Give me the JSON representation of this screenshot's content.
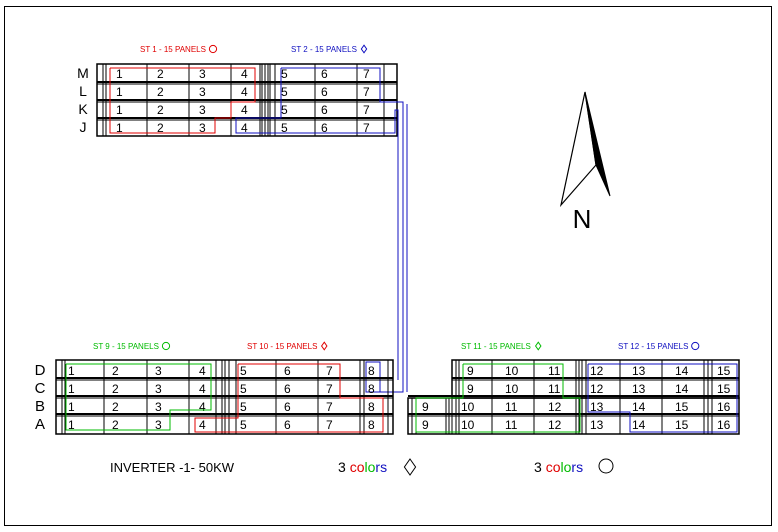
{
  "strings": [
    {
      "label": "ST 1 - 15 PANELS",
      "symbol": "circle",
      "color": "#e00000"
    },
    {
      "label": "ST 2 - 15 PANELS",
      "symbol": "diamond",
      "color": "#1010c0"
    },
    {
      "label": "ST 9 - 15 PANELS",
      "symbol": "circle",
      "color": "#00bb00"
    },
    {
      "label": "ST 10 - 15 PANELS",
      "symbol": "diamond",
      "color": "#e00000"
    },
    {
      "label": "ST 11 - 15 PANELS",
      "symbol": "diamond",
      "color": "#00bb00"
    },
    {
      "label": "ST 12 - 15 PANELS",
      "symbol": "circle",
      "color": "#1010c0"
    }
  ],
  "top_rows": [
    "M",
    "L",
    "K",
    "J"
  ],
  "bottom_rows": [
    "D",
    "C",
    "B",
    "A"
  ],
  "top_block": {
    "M": [
      "1",
      "2",
      "3",
      "4",
      "5",
      "6",
      "7"
    ],
    "L": [
      "1",
      "2",
      "3",
      "4",
      "5",
      "6",
      "7"
    ],
    "K": [
      "1",
      "2",
      "3",
      "4",
      "5",
      "6",
      "7"
    ],
    "J": [
      "1",
      "2",
      "3",
      "4",
      "5",
      "6",
      "7"
    ]
  },
  "bottom_left_block": {
    "D": [
      "1",
      "2",
      "3",
      "4",
      "5",
      "6",
      "7",
      "8"
    ],
    "C": [
      "1",
      "2",
      "3",
      "4",
      "5",
      "6",
      "7",
      "8"
    ],
    "B": [
      "1",
      "2",
      "3",
      "4",
      "5",
      "6",
      "7",
      "8"
    ],
    "A": [
      "1",
      "2",
      "3",
      "4",
      "5",
      "6",
      "7",
      "8"
    ]
  },
  "bottom_right_block": {
    "D": [
      "9",
      "10",
      "11",
      "12",
      "13",
      "14",
      "15"
    ],
    "C": [
      "9",
      "10",
      "11",
      "12",
      "13",
      "14",
      "15"
    ],
    "B": [
      "9",
      "10",
      "11",
      "12",
      "13",
      "14",
      "15",
      "16"
    ],
    "A": [
      "9",
      "10",
      "11",
      "12",
      "13",
      "14",
      "15",
      "16"
    ]
  },
  "north_label": "N",
  "inverter_label": "INVERTER -1-  50KW",
  "legend_diamond": {
    "prefix": "3 ",
    "word": [
      "c",
      "o",
      "l",
      "o",
      "r",
      "s"
    ],
    "symbol": "diamond"
  },
  "legend_circle": {
    "prefix": "3 ",
    "word": [
      "c",
      "o",
      "l",
      "o",
      "r",
      "s"
    ],
    "symbol": "circle"
  },
  "colors": {
    "red": "#e00000",
    "green": "#00bb00",
    "blue": "#1010c0",
    "black": "#000000"
  }
}
